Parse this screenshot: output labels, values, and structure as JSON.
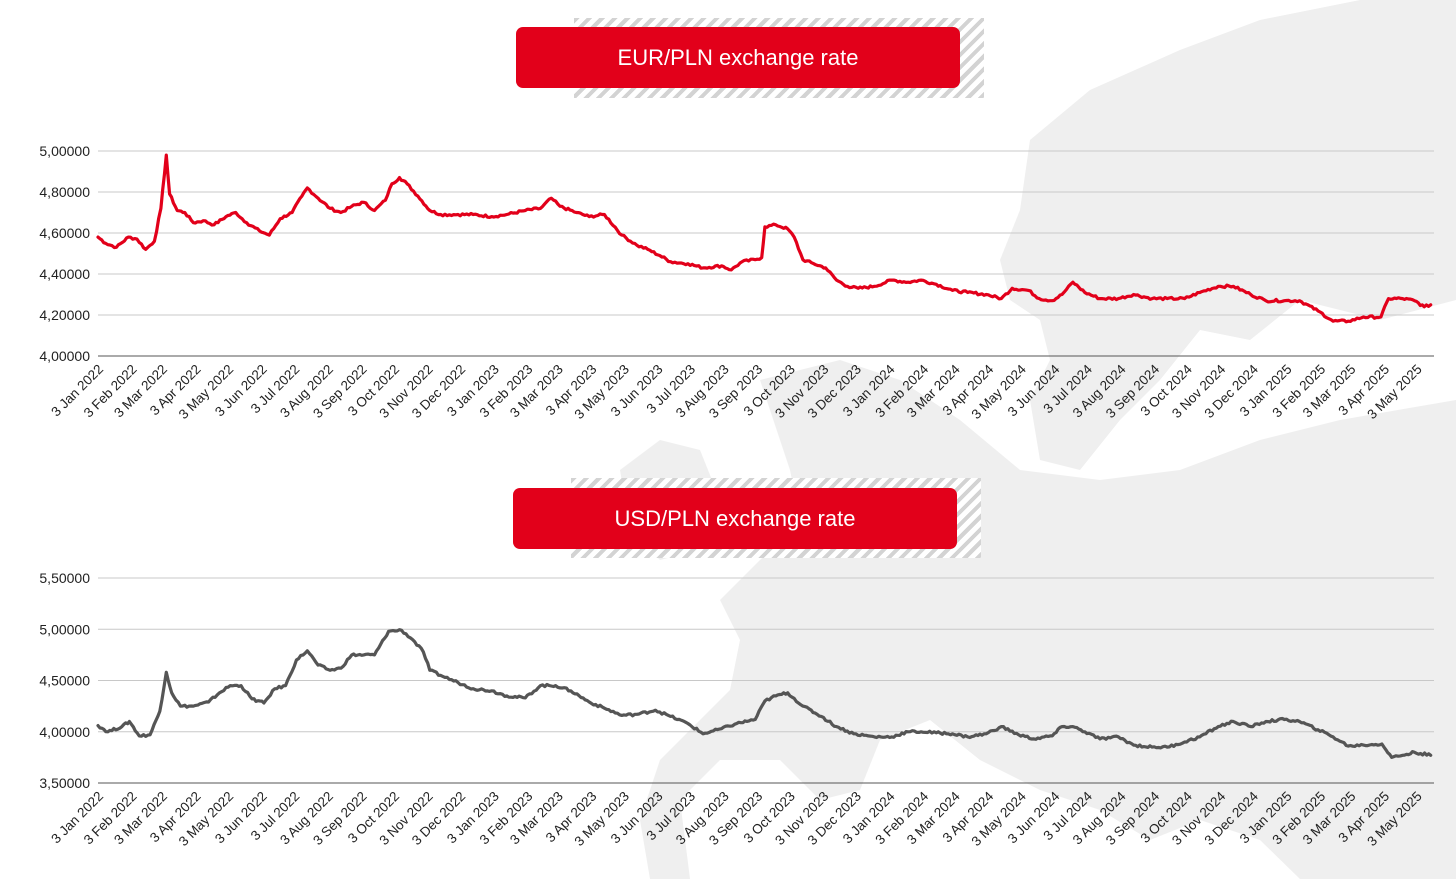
{
  "colors": {
    "eur_line": "#e2001a",
    "usd_line": "#555555",
    "title_bg": "#e2001a",
    "grid": "#c8c8c8",
    "map": "#efefef"
  },
  "chart_data": [
    {
      "type": "line",
      "title": "EUR/PLN exchange rate",
      "xlabel": "",
      "ylabel": "",
      "ylim": [
        4.0,
        5.0
      ],
      "y_ticks": [
        "4,00000",
        "4,20000",
        "4,40000",
        "4,60000",
        "4,80000",
        "5,00000"
      ],
      "x_ticks": [
        "3 Jan 2022",
        "3 Feb 2022",
        "3 Mar 2022",
        "3 Apr 2022",
        "3 May 2022",
        "3 Jun 2022",
        "3 Jul 2022",
        "3 Aug 2022",
        "3 Sep 2022",
        "3 Oct 2022",
        "3 Nov 2022",
        "3 Dec 2022",
        "3 Jan 2023",
        "3 Feb 2023",
        "3 Mar 2023",
        "3 Apr 2023",
        "3 May 2023",
        "3 Jun 2023",
        "3 Jul 2023",
        "3 Aug 2023",
        "3 Sep 2023",
        "3 Oct 2023",
        "3 Nov 2023",
        "3 Dec 2023",
        "3 Jan 2024",
        "3 Feb 2024",
        "3 Mar 2024",
        "3 Apr 2024",
        "3 May 2024",
        "3 Jun 2024",
        "3 Jul 2024",
        "3 Aug 2024",
        "3 Sep 2024",
        "3 Oct 2024",
        "3 Nov 2024",
        "3 Dec 2024",
        "3 Jan 2025",
        "3 Feb 2025",
        "3 Mar 2025",
        "3 Apr 2025",
        "3 May 2025"
      ],
      "grid": true,
      "legend": "none",
      "series": [
        {
          "color": "#e2001a",
          "points": [
            [
              "2022-01-03",
              4.58
            ],
            [
              "2022-01-10",
              4.55
            ],
            [
              "2022-01-20",
              4.53
            ],
            [
              "2022-01-31",
              4.58
            ],
            [
              "2022-02-08",
              4.57
            ],
            [
              "2022-02-16",
              4.52
            ],
            [
              "2022-02-24",
              4.56
            ],
            [
              "2022-03-02",
              4.72
            ],
            [
              "2022-03-07",
              4.98
            ],
            [
              "2022-03-10",
              4.79
            ],
            [
              "2022-03-17",
              4.71
            ],
            [
              "2022-03-24",
              4.7
            ],
            [
              "2022-04-01",
              4.65
            ],
            [
              "2022-04-10",
              4.66
            ],
            [
              "2022-04-20",
              4.64
            ],
            [
              "2022-05-01",
              4.68
            ],
            [
              "2022-05-10",
              4.7
            ],
            [
              "2022-05-20",
              4.65
            ],
            [
              "2022-06-01",
              4.61
            ],
            [
              "2022-06-10",
              4.59
            ],
            [
              "2022-06-20",
              4.67
            ],
            [
              "2022-07-01",
              4.7
            ],
            [
              "2022-07-10",
              4.78
            ],
            [
              "2022-07-15",
              4.82
            ],
            [
              "2022-07-25",
              4.77
            ],
            [
              "2022-08-05",
              4.72
            ],
            [
              "2022-08-15",
              4.7
            ],
            [
              "2022-08-25",
              4.73
            ],
            [
              "2022-09-05",
              4.75
            ],
            [
              "2022-09-15",
              4.71
            ],
            [
              "2022-09-25",
              4.76
            ],
            [
              "2022-10-01",
              4.84
            ],
            [
              "2022-10-08",
              4.87
            ],
            [
              "2022-10-15",
              4.84
            ],
            [
              "2022-10-25",
              4.78
            ],
            [
              "2022-11-05",
              4.71
            ],
            [
              "2022-11-15",
              4.69
            ],
            [
              "2022-12-01",
              4.69
            ],
            [
              "2022-12-15",
              4.69
            ],
            [
              "2023-01-01",
              4.68
            ],
            [
              "2023-01-15",
              4.69
            ],
            [
              "2023-02-01",
              4.71
            ],
            [
              "2023-02-15",
              4.72
            ],
            [
              "2023-02-25",
              4.77
            ],
            [
              "2023-03-05",
              4.73
            ],
            [
              "2023-03-20",
              4.7
            ],
            [
              "2023-04-01",
              4.68
            ],
            [
              "2023-04-15",
              4.69
            ],
            [
              "2023-05-01",
              4.59
            ],
            [
              "2023-05-15",
              4.54
            ],
            [
              "2023-05-25",
              4.52
            ],
            [
              "2023-06-05",
              4.49
            ],
            [
              "2023-06-15",
              4.46
            ],
            [
              "2023-07-01",
              4.45
            ],
            [
              "2023-07-15",
              4.43
            ],
            [
              "2023-08-01",
              4.44
            ],
            [
              "2023-08-10",
              4.42
            ],
            [
              "2023-08-20",
              4.46
            ],
            [
              "2023-09-01",
              4.47
            ],
            [
              "2023-09-07",
              4.48
            ],
            [
              "2023-09-10",
              4.63
            ],
            [
              "2023-09-20",
              4.64
            ],
            [
              "2023-10-01",
              4.62
            ],
            [
              "2023-10-07",
              4.58
            ],
            [
              "2023-10-15",
              4.47
            ],
            [
              "2023-10-25",
              4.45
            ],
            [
              "2023-11-05",
              4.43
            ],
            [
              "2023-11-15",
              4.37
            ],
            [
              "2023-11-25",
              4.34
            ],
            [
              "2023-12-05",
              4.33
            ],
            [
              "2023-12-20",
              4.34
            ],
            [
              "2024-01-05",
              4.37
            ],
            [
              "2024-01-20",
              4.36
            ],
            [
              "2024-02-01",
              4.37
            ],
            [
              "2024-02-15",
              4.35
            ],
            [
              "2024-03-01",
              4.32
            ],
            [
              "2024-03-15",
              4.31
            ],
            [
              "2024-04-01",
              4.3
            ],
            [
              "2024-04-15",
              4.28
            ],
            [
              "2024-04-25",
              4.33
            ],
            [
              "2024-05-10",
              4.32
            ],
            [
              "2024-05-20",
              4.28
            ],
            [
              "2024-06-01",
              4.27
            ],
            [
              "2024-06-10",
              4.3
            ],
            [
              "2024-06-20",
              4.36
            ],
            [
              "2024-07-01",
              4.31
            ],
            [
              "2024-07-15",
              4.28
            ],
            [
              "2024-08-01",
              4.28
            ],
            [
              "2024-08-15",
              4.3
            ],
            [
              "2024-09-01",
              4.28
            ],
            [
              "2024-09-15",
              4.28
            ],
            [
              "2024-10-01",
              4.28
            ],
            [
              "2024-10-15",
              4.31
            ],
            [
              "2024-11-01",
              4.34
            ],
            [
              "2024-11-15",
              4.34
            ],
            [
              "2024-12-01",
              4.3
            ],
            [
              "2024-12-15",
              4.27
            ],
            [
              "2025-01-01",
              4.27
            ],
            [
              "2025-01-15",
              4.27
            ],
            [
              "2025-02-01",
              4.22
            ],
            [
              "2025-02-15",
              4.17
            ],
            [
              "2025-03-01",
              4.17
            ],
            [
              "2025-03-15",
              4.19
            ],
            [
              "2025-03-31",
              4.19
            ],
            [
              "2025-04-07",
              4.28
            ],
            [
              "2025-04-20",
              4.28
            ],
            [
              "2025-05-01",
              4.27
            ],
            [
              "2025-05-10",
              4.24
            ],
            [
              "2025-05-16",
              4.25
            ]
          ]
        }
      ]
    },
    {
      "type": "line",
      "title": "USD/PLN exchange rate",
      "xlabel": "",
      "ylabel": "",
      "ylim": [
        3.5,
        5.5
      ],
      "y_ticks": [
        "3,50000",
        "4,00000",
        "4,50000",
        "5,00000",
        "5,50000"
      ],
      "x_ticks": [
        "3 Jan 2022",
        "3 Feb 2022",
        "3 Mar 2022",
        "3 Apr 2022",
        "3 May 2022",
        "3 Jun 2022",
        "3 Jul 2022",
        "3 Aug 2022",
        "3 Sep 2022",
        "3 Oct 2022",
        "3 Nov 2022",
        "3 Dec 2022",
        "3 Jan 2023",
        "3 Feb 2023",
        "3 Mar 2023",
        "3 Apr 2023",
        "3 May 2023",
        "3 Jun 2023",
        "3 Jul 2023",
        "3 Aug 2023",
        "3 Sep 2023",
        "3 Oct 2023",
        "3 Nov 2023",
        "3 Dec 2023",
        "3 Jan 2024",
        "3 Feb 2024",
        "3 Mar 2024",
        "3 Apr 2024",
        "3 May 2024",
        "3 Jun 2024",
        "3 Jul 2024",
        "3 Aug 2024",
        "3 Sep 2024",
        "3 Oct 2024",
        "3 Nov 2024",
        "3 Dec 2024",
        "3 Jan 2025",
        "3 Feb 2025",
        "3 Mar 2025",
        "3 Apr 2025",
        "3 May 2025"
      ],
      "grid": true,
      "legend": "none",
      "series": [
        {
          "color": "#555555",
          "points": [
            [
              "2022-01-03",
              4.06
            ],
            [
              "2022-01-12",
              4.0
            ],
            [
              "2022-01-25",
              4.05
            ],
            [
              "2022-02-01",
              4.1
            ],
            [
              "2022-02-10",
              3.96
            ],
            [
              "2022-02-20",
              3.97
            ],
            [
              "2022-03-01",
              4.2
            ],
            [
              "2022-03-07",
              4.58
            ],
            [
              "2022-03-12",
              4.38
            ],
            [
              "2022-03-20",
              4.25
            ],
            [
              "2022-04-01",
              4.25
            ],
            [
              "2022-04-15",
              4.29
            ],
            [
              "2022-04-25",
              4.38
            ],
            [
              "2022-05-05",
              4.45
            ],
            [
              "2022-05-15",
              4.45
            ],
            [
              "2022-05-25",
              4.32
            ],
            [
              "2022-06-05",
              4.28
            ],
            [
              "2022-06-15",
              4.42
            ],
            [
              "2022-06-25",
              4.45
            ],
            [
              "2022-07-05",
              4.7
            ],
            [
              "2022-07-15",
              4.79
            ],
            [
              "2022-07-25",
              4.65
            ],
            [
              "2022-08-05",
              4.6
            ],
            [
              "2022-08-15",
              4.62
            ],
            [
              "2022-08-25",
              4.75
            ],
            [
              "2022-09-05",
              4.75
            ],
            [
              "2022-09-15",
              4.75
            ],
            [
              "2022-09-28",
              4.98
            ],
            [
              "2022-10-10",
              4.99
            ],
            [
              "2022-10-20",
              4.9
            ],
            [
              "2022-10-30",
              4.78
            ],
            [
              "2022-11-05",
              4.6
            ],
            [
              "2022-11-15",
              4.55
            ],
            [
              "2022-12-01",
              4.48
            ],
            [
              "2022-12-15",
              4.42
            ],
            [
              "2023-01-01",
              4.4
            ],
            [
              "2023-01-15",
              4.35
            ],
            [
              "2023-02-01",
              4.33
            ],
            [
              "2023-02-15",
              4.45
            ],
            [
              "2023-03-01",
              4.45
            ],
            [
              "2023-03-15",
              4.4
            ],
            [
              "2023-04-01",
              4.29
            ],
            [
              "2023-04-15",
              4.23
            ],
            [
              "2023-05-01",
              4.16
            ],
            [
              "2023-05-15",
              4.17
            ],
            [
              "2023-06-01",
              4.21
            ],
            [
              "2023-06-15",
              4.15
            ],
            [
              "2023-07-01",
              4.08
            ],
            [
              "2023-07-15",
              3.98
            ],
            [
              "2023-08-01",
              4.03
            ],
            [
              "2023-08-15",
              4.08
            ],
            [
              "2023-09-01",
              4.12
            ],
            [
              "2023-09-10",
              4.3
            ],
            [
              "2023-09-20",
              4.35
            ],
            [
              "2023-10-01",
              4.38
            ],
            [
              "2023-10-15",
              4.25
            ],
            [
              "2023-11-01",
              4.15
            ],
            [
              "2023-11-15",
              4.05
            ],
            [
              "2023-12-01",
              3.98
            ],
            [
              "2023-12-20",
              3.95
            ],
            [
              "2024-01-05",
              3.95
            ],
            [
              "2024-01-20",
              4.0
            ],
            [
              "2024-02-01",
              4.0
            ],
            [
              "2024-02-15",
              3.99
            ],
            [
              "2024-03-01",
              3.98
            ],
            [
              "2024-03-15",
              3.95
            ],
            [
              "2024-04-01",
              3.98
            ],
            [
              "2024-04-15",
              4.05
            ],
            [
              "2024-05-01",
              3.97
            ],
            [
              "2024-05-15",
              3.93
            ],
            [
              "2024-06-01",
              3.96
            ],
            [
              "2024-06-10",
              4.05
            ],
            [
              "2024-06-20",
              4.05
            ],
            [
              "2024-07-01",
              4.0
            ],
            [
              "2024-07-15",
              3.93
            ],
            [
              "2024-08-01",
              3.95
            ],
            [
              "2024-08-15",
              3.87
            ],
            [
              "2024-09-01",
              3.85
            ],
            [
              "2024-09-15",
              3.85
            ],
            [
              "2024-10-01",
              3.9
            ],
            [
              "2024-10-15",
              3.95
            ],
            [
              "2024-11-01",
              4.05
            ],
            [
              "2024-11-15",
              4.1
            ],
            [
              "2024-12-01",
              4.05
            ],
            [
              "2024-12-15",
              4.1
            ],
            [
              "2025-01-01",
              4.12
            ],
            [
              "2025-01-15",
              4.1
            ],
            [
              "2025-02-01",
              4.02
            ],
            [
              "2025-02-15",
              3.95
            ],
            [
              "2025-03-01",
              3.86
            ],
            [
              "2025-03-15",
              3.87
            ],
            [
              "2025-04-01",
              3.88
            ],
            [
              "2025-04-10",
              3.75
            ],
            [
              "2025-04-20",
              3.77
            ],
            [
              "2025-05-01",
              3.8
            ],
            [
              "2025-05-16",
              3.77
            ]
          ]
        }
      ]
    }
  ]
}
